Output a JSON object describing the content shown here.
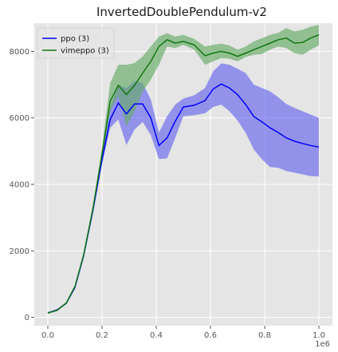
{
  "chart_data": {
    "type": "line",
    "title": "InvertedDoublePendulum-v2",
    "xlabel": "",
    "ylabel": "",
    "x_offset_label": "1e6",
    "xlim": [
      -0.05,
      1.05
    ],
    "ylim": [
      -250,
      8850
    ],
    "x_ticks": [
      0.0,
      0.2,
      0.4,
      0.6,
      0.8,
      1.0
    ],
    "x_tick_labels": [
      "0.0",
      "0.2",
      "0.4",
      "0.6",
      "0.8",
      "1.0"
    ],
    "y_ticks": [
      0,
      2000,
      4000,
      6000,
      8000
    ],
    "y_tick_labels": [
      "0",
      "2000",
      "4000",
      "6000",
      "8000"
    ],
    "grid": true,
    "legend_position": "top-left",
    "x": [
      0.0,
      0.034,
      0.068,
      0.1,
      0.132,
      0.166,
      0.2,
      0.23,
      0.26,
      0.29,
      0.32,
      0.35,
      0.38,
      0.41,
      0.44,
      0.47,
      0.5,
      0.54,
      0.58,
      0.61,
      0.64,
      0.67,
      0.7,
      0.73,
      0.76,
      0.79,
      0.82,
      0.85,
      0.88,
      0.91,
      0.94,
      0.97,
      1.0
    ],
    "series": [
      {
        "name": "ppo (3)",
        "color": "#0000ff",
        "band_color": "#6666ee",
        "values": [
          130,
          220,
          420,
          900,
          1850,
          3200,
          4750,
          5950,
          6450,
          6120,
          6420,
          6420,
          6000,
          5170,
          5400,
          5900,
          6330,
          6380,
          6520,
          6870,
          7020,
          6900,
          6700,
          6400,
          6040,
          5880,
          5700,
          5560,
          5400,
          5300,
          5230,
          5170,
          5120
        ],
        "lower": [
          110,
          200,
          400,
          860,
          1800,
          3100,
          4600,
          5700,
          5950,
          5180,
          5650,
          5880,
          5480,
          4760,
          4780,
          5400,
          6050,
          6080,
          6140,
          6330,
          6400,
          6200,
          5920,
          5550,
          5050,
          4750,
          4520,
          4500,
          4400,
          4350,
          4300,
          4250,
          4240
        ],
        "upper": [
          160,
          250,
          450,
          940,
          1900,
          3300,
          4950,
          6300,
          7000,
          6900,
          7100,
          7050,
          6550,
          5560,
          6050,
          6400,
          6580,
          6680,
          6900,
          7400,
          7640,
          7600,
          7480,
          7350,
          7000,
          6900,
          6800,
          6620,
          6420,
          6300,
          6200,
          6100,
          6000
        ]
      },
      {
        "name": "vimeppo (3)",
        "color": "#117711",
        "band_color": "#66aa66",
        "values": [
          130,
          210,
          430,
          930,
          1880,
          3250,
          4900,
          6500,
          6980,
          6700,
          6980,
          7350,
          7700,
          8150,
          8350,
          8250,
          8300,
          8200,
          7870,
          7950,
          8000,
          7950,
          7850,
          7950,
          8050,
          8150,
          8250,
          8350,
          8400,
          8250,
          8270,
          8400,
          8500
        ],
        "lower": [
          110,
          190,
          400,
          890,
          1830,
          3150,
          4750,
          6200,
          6650,
          5750,
          6200,
          6800,
          7150,
          7600,
          8150,
          8100,
          8200,
          8050,
          7600,
          7700,
          7800,
          7780,
          7700,
          7830,
          7900,
          7920,
          8050,
          8150,
          8100,
          7950,
          7900,
          8050,
          8180
        ],
        "upper": [
          160,
          240,
          460,
          970,
          1930,
          3350,
          5100,
          7050,
          7600,
          7600,
          7650,
          7850,
          8150,
          8450,
          8550,
          8450,
          8500,
          8380,
          8150,
          8200,
          8230,
          8180,
          8050,
          8150,
          8300,
          8400,
          8500,
          8560,
          8700,
          8600,
          8650,
          8750,
          8800
        ]
      }
    ]
  }
}
